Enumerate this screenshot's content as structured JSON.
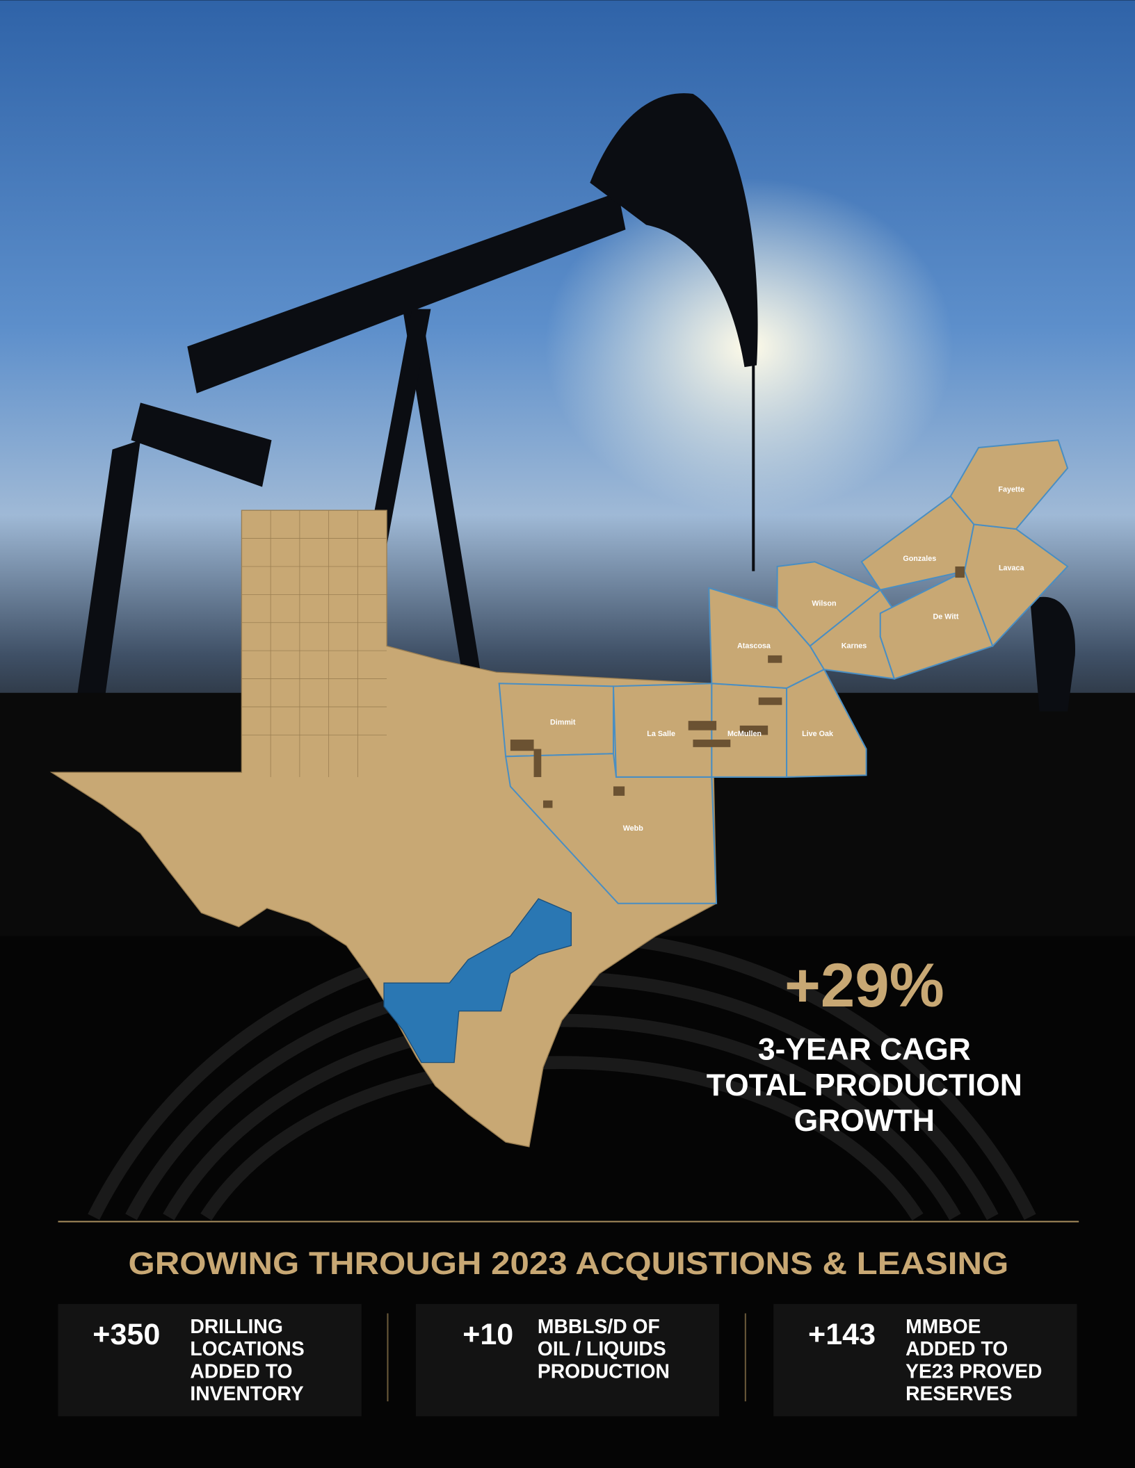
{
  "headline": {
    "value": "+29%",
    "lines": [
      "3-YEAR CAGR",
      "TOTAL PRODUCTION",
      "GROWTH"
    ]
  },
  "map": {
    "counties": [
      "Fayette",
      "Gonzales",
      "Lavaca",
      "Wilson",
      "De Witt",
      "Karnes",
      "Atascosa",
      "Dimmit",
      "La Salle",
      "McMullen",
      "Live Oak",
      "Webb"
    ]
  },
  "section_title": "GROWING THROUGH 2023 ACQUISTIONS & LEASING",
  "stats": [
    {
      "value": "+350",
      "lines": [
        "DRILLING",
        "LOCATIONS",
        "ADDED TO",
        "INVENTORY"
      ]
    },
    {
      "value": "+10",
      "lines": [
        "MBBLS/D OF",
        "OIL / LIQUIDS",
        "PRODUCTION"
      ]
    },
    {
      "value": "+143",
      "lines": [
        "MMBOE",
        "ADDED TO",
        "YE23 PROVED",
        "RESERVES"
      ]
    }
  ]
}
